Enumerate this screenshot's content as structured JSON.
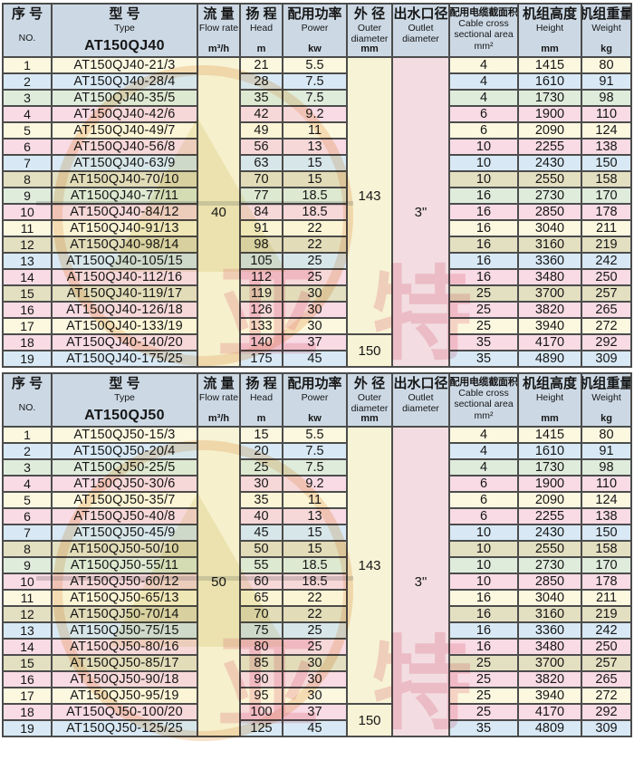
{
  "colors": {
    "header_bg": "#ccd9e5",
    "border": "#4c4c4c",
    "row_palette": {
      "cream": "#fcf8e0",
      "blue": "#d8e9f5",
      "green": "#dfecdc",
      "pink": "#f8dbe4",
      "tan": "#e3dfc1",
      "merged_yellow": "#f7f3d6",
      "merged_pink": "#f3dde2"
    },
    "row_color_sequence": [
      "cream",
      "blue",
      "green",
      "pink",
      "cream",
      "pink",
      "blue",
      "tan",
      "green",
      "pink",
      "cream",
      "tan",
      "blue",
      "pink",
      "tan",
      "pink",
      "cream",
      "pink",
      "blue"
    ]
  },
  "watermark": {
    "brand": "亚特"
  },
  "columns": [
    {
      "key": "no",
      "zh": "序 号",
      "en": [
        "NO."
      ],
      "unit": "",
      "mid": true
    },
    {
      "key": "type",
      "zh": "型 号",
      "en": [
        "Type"
      ],
      "unit": ""
    },
    {
      "key": "flow",
      "zh": "流 量",
      "en": [
        "Flow rate"
      ],
      "unit": "m³/h"
    },
    {
      "key": "head",
      "zh": "扬 程",
      "en": [
        "Head"
      ],
      "unit": "m"
    },
    {
      "key": "power",
      "zh": "配用功率",
      "en": [
        "Power"
      ],
      "unit": "kw"
    },
    {
      "key": "outer",
      "zh": "外 径",
      "en": [
        "Outer",
        "diameter"
      ],
      "unit": "mm"
    },
    {
      "key": "outlet",
      "zh": "出水口径",
      "en": [
        "Outlet",
        "diameter"
      ],
      "unit": ""
    },
    {
      "key": "cable",
      "zh": "配用电缆截面积",
      "en": [
        "Cable cross",
        "sectional area",
        "mm²"
      ],
      "unit": "",
      "small": true
    },
    {
      "key": "height",
      "zh": "机组高度",
      "en": [
        "Height"
      ],
      "unit": "mm"
    },
    {
      "key": "weight",
      "zh": "机组重量",
      "en": [
        "Weight"
      ],
      "unit": "kg"
    }
  ],
  "row_fields": [
    "no",
    "type",
    "head",
    "power",
    "cable",
    "height",
    "weight"
  ],
  "tables": [
    {
      "model": "AT150QJ40",
      "flow_rate": "40",
      "outlet_diameter": "3\"",
      "outer_cells": [
        {
          "value": "143",
          "start": 0,
          "rows": 17
        },
        {
          "value": "150",
          "start": 17,
          "rows": 2
        }
      ],
      "rows": [
        [
          "1",
          "AT150QJ40-21/3",
          "21",
          "5.5",
          "4",
          "1415",
          "80"
        ],
        [
          "2",
          "AT150QJ40-28/4",
          "28",
          "7.5",
          "4",
          "1610",
          "91"
        ],
        [
          "3",
          "AT150QJ40-35/5",
          "35",
          "7.5",
          "4",
          "1730",
          "98"
        ],
        [
          "4",
          "AT150QJ40-42/6",
          "42",
          "9.2",
          "6",
          "1900",
          "110"
        ],
        [
          "5",
          "AT150QJ40-49/7",
          "49",
          "11",
          "6",
          "2090",
          "124"
        ],
        [
          "6",
          "AT150QJ40-56/8",
          "56",
          "13",
          "10",
          "2255",
          "138"
        ],
        [
          "7",
          "AT150QJ40-63/9",
          "63",
          "15",
          "10",
          "2430",
          "150"
        ],
        [
          "8",
          "AT150QJ40-70/10",
          "70",
          "15",
          "10",
          "2550",
          "158"
        ],
        [
          "9",
          "AT150QJ40-77/11",
          "77",
          "18.5",
          "16",
          "2730",
          "170"
        ],
        [
          "10",
          "AT150QJ40-84/12",
          "84",
          "18.5",
          "16",
          "2850",
          "178"
        ],
        [
          "11",
          "AT150QJ40-91/13",
          "91",
          "22",
          "16",
          "3040",
          "211"
        ],
        [
          "12",
          "AT150QJ40-98/14",
          "98",
          "22",
          "16",
          "3160",
          "219"
        ],
        [
          "13",
          "AT150QJ40-105/15",
          "105",
          "25",
          "16",
          "3360",
          "242"
        ],
        [
          "14",
          "AT150QJ40-112/16",
          "112",
          "25",
          "16",
          "3480",
          "250"
        ],
        [
          "15",
          "AT150QJ40-119/17",
          "119",
          "30",
          "25",
          "3700",
          "257"
        ],
        [
          "16",
          "AT150QJ40-126/18",
          "126",
          "30",
          "25",
          "3820",
          "265"
        ],
        [
          "17",
          "AT150QJ40-133/19",
          "133",
          "30",
          "25",
          "3940",
          "272"
        ],
        [
          "18",
          "AT150QJ40-140/20",
          "140",
          "37",
          "35",
          "4170",
          "292"
        ],
        [
          "19",
          "AT150QJ40-175/25",
          "175",
          "45",
          "35",
          "4890",
          "309"
        ]
      ]
    },
    {
      "model": "AT150QJ50",
      "flow_rate": "50",
      "outlet_diameter": "3\"",
      "outer_cells": [
        {
          "value": "143",
          "start": 0,
          "rows": 17
        },
        {
          "value": "150",
          "start": 17,
          "rows": 2
        }
      ],
      "rows": [
        [
          "1",
          "AT150QJ50-15/3",
          "15",
          "5.5",
          "4",
          "1415",
          "80"
        ],
        [
          "2",
          "AT150QJ50-20/4",
          "20",
          "7.5",
          "4",
          "1610",
          "91"
        ],
        [
          "3",
          "AT150QJ50-25/5",
          "25",
          "7.5",
          "4",
          "1730",
          "98"
        ],
        [
          "4",
          "AT150QJ50-30/6",
          "30",
          "9.2",
          "6",
          "1900",
          "110"
        ],
        [
          "5",
          "AT150QJ50-35/7",
          "35",
          "11",
          "6",
          "2090",
          "124"
        ],
        [
          "6",
          "AT150QJ50-40/8",
          "40",
          "13",
          "6",
          "2255",
          "138"
        ],
        [
          "7",
          "AT150QJ50-45/9",
          "45",
          "15",
          "10",
          "2430",
          "150"
        ],
        [
          "8",
          "AT150QJ50-50/10",
          "50",
          "15",
          "10",
          "2550",
          "158"
        ],
        [
          "9",
          "AT150QJ50-55/11",
          "55",
          "18.5",
          "10",
          "2730",
          "170"
        ],
        [
          "10",
          "AT150QJ50-60/12",
          "60",
          "18.5",
          "10",
          "2850",
          "178"
        ],
        [
          "11",
          "AT150QJ50-65/13",
          "65",
          "22",
          "16",
          "3040",
          "211"
        ],
        [
          "12",
          "AT150QJ50-70/14",
          "70",
          "22",
          "16",
          "3160",
          "219"
        ],
        [
          "13",
          "AT150QJ50-75/15",
          "75",
          "25",
          "16",
          "3360",
          "242"
        ],
        [
          "14",
          "AT150QJ50-80/16",
          "80",
          "25",
          "16",
          "3480",
          "250"
        ],
        [
          "15",
          "AT150QJ50-85/17",
          "85",
          "30",
          "25",
          "3700",
          "257"
        ],
        [
          "16",
          "AT150QJ50-90/18",
          "90",
          "30",
          "25",
          "3820",
          "265"
        ],
        [
          "17",
          "AT150QJ50-95/19",
          "95",
          "30",
          "25",
          "3940",
          "272"
        ],
        [
          "18",
          "AT150QJ50-100/20",
          "100",
          "37",
          "25",
          "4170",
          "292"
        ],
        [
          "19",
          "AT150QJ50-125/25",
          "125",
          "45",
          "35",
          "4809",
          "309"
        ]
      ]
    }
  ]
}
